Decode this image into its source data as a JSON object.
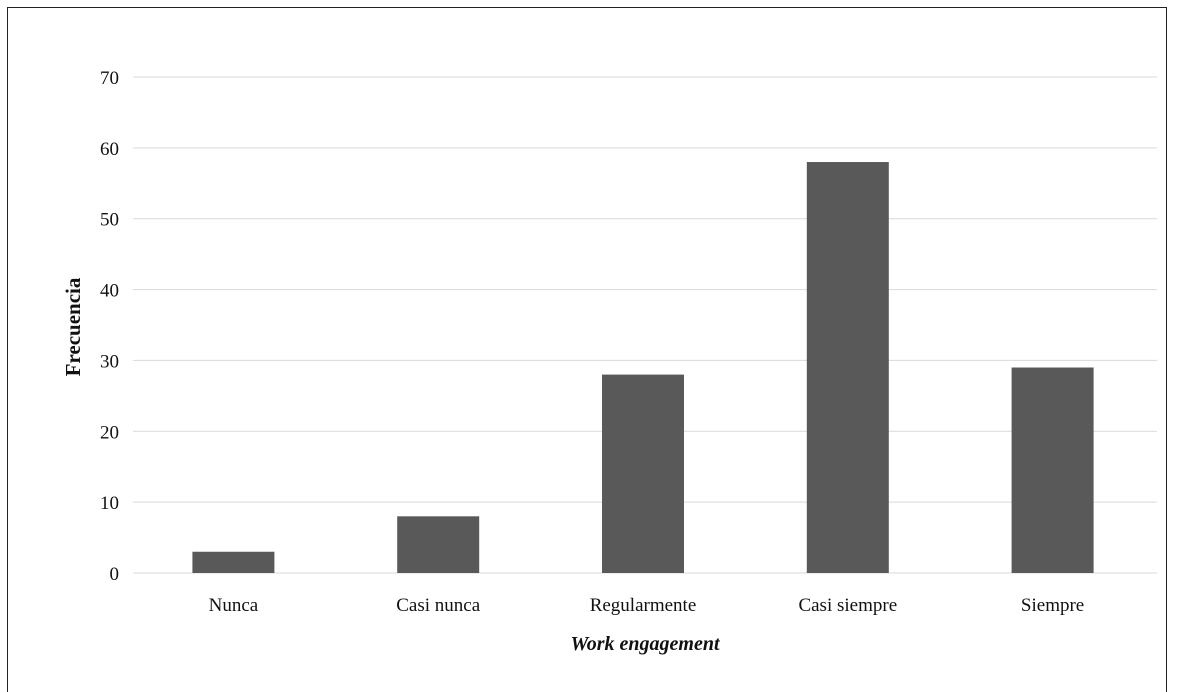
{
  "chart_data": {
    "type": "bar",
    "categories": [
      "Nunca",
      "Casi nunca",
      "Regularmente",
      "Casi siempre",
      "Siempre"
    ],
    "values": [
      3,
      8,
      28,
      58,
      29
    ],
    "xlabel": "Work engagement",
    "ylabel": "Frecuencia",
    "ylim": [
      0,
      70
    ],
    "yticks": [
      0,
      10,
      20,
      30,
      40,
      50,
      60,
      70
    ],
    "grid": "horizontal",
    "bar_color": "#595959",
    "grid_color": "#d9d9d9"
  }
}
